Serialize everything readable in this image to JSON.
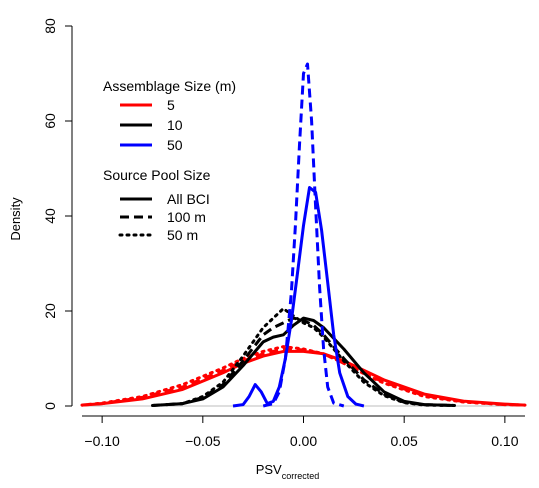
{
  "chart_data": {
    "type": "line",
    "title": "",
    "xlabel": "PSV",
    "xlabel_subscript": "corrected",
    "ylabel": "Density",
    "xlim": [
      -0.11,
      0.11
    ],
    "ylim": [
      0,
      80
    ],
    "xticks": [
      -0.1,
      -0.05,
      0.0,
      0.05,
      0.1
    ],
    "xtick_labels": [
      "−0.10",
      "−0.05",
      "0.00",
      "0.05",
      "0.10"
    ],
    "yticks": [
      0,
      20,
      40,
      60,
      80
    ],
    "ytick_labels": [
      "0",
      "20",
      "40",
      "60",
      "80"
    ],
    "legend_size": {
      "title": "Assemblage Size (m)",
      "entries": [
        {
          "label": "5",
          "color": "#ff0000"
        },
        {
          "label": "10",
          "color": "#000000"
        },
        {
          "label": "50",
          "color": "#0000ff"
        }
      ]
    },
    "legend_pool": {
      "title": "Source Pool Size",
      "entries": [
        {
          "label": "All BCI",
          "linestyle": "solid"
        },
        {
          "label": "100 m",
          "linestyle": "dashed"
        },
        {
          "label": "50 m",
          "linestyle": "dotted"
        }
      ]
    },
    "legend_placement": "top-left",
    "series": [
      {
        "size": "5",
        "pool": "All BCI",
        "color": "#ff0000",
        "linestyle": "solid",
        "x": [
          -0.11,
          -0.1,
          -0.08,
          -0.06,
          -0.04,
          -0.03,
          -0.02,
          -0.01,
          0.0,
          0.01,
          0.02,
          0.03,
          0.04,
          0.06,
          0.08,
          0.1,
          0.11
        ],
        "y": [
          0.2,
          0.5,
          1.5,
          3.5,
          7.0,
          9.0,
          10.5,
          11.5,
          11.5,
          11.0,
          9.5,
          7.5,
          5.5,
          2.5,
          1.0,
          0.4,
          0.2
        ]
      },
      {
        "size": "5",
        "pool": "100 m",
        "color": "#ff0000",
        "linestyle": "dashed",
        "x": [
          -0.11,
          -0.1,
          -0.08,
          -0.06,
          -0.04,
          -0.03,
          -0.02,
          -0.01,
          0.0,
          0.01,
          0.02,
          0.03,
          0.04,
          0.06,
          0.08,
          0.1,
          0.11
        ],
        "y": [
          0.2,
          0.5,
          1.8,
          4.0,
          7.5,
          9.5,
          11.0,
          12.0,
          11.8,
          11.0,
          9.0,
          7.0,
          5.0,
          2.2,
          0.9,
          0.3,
          0.2
        ]
      },
      {
        "size": "5",
        "pool": "50 m",
        "color": "#ff0000",
        "linestyle": "dotted",
        "x": [
          -0.11,
          -0.1,
          -0.08,
          -0.06,
          -0.04,
          -0.03,
          -0.02,
          -0.01,
          0.0,
          0.01,
          0.02,
          0.03,
          0.04,
          0.06,
          0.08,
          0.1,
          0.11
        ],
        "y": [
          0.2,
          0.6,
          2.0,
          4.5,
          8.0,
          10.0,
          11.5,
          12.5,
          12.0,
          11.0,
          9.0,
          6.8,
          4.8,
          2.0,
          0.8,
          0.3,
          0.2
        ]
      },
      {
        "size": "10",
        "pool": "All BCI",
        "color": "#000000",
        "linestyle": "solid",
        "x": [
          -0.075,
          -0.06,
          -0.05,
          -0.04,
          -0.03,
          -0.02,
          -0.015,
          -0.01,
          -0.005,
          0.0,
          0.005,
          0.01,
          0.02,
          0.03,
          0.04,
          0.05,
          0.06,
          0.075
        ],
        "y": [
          0.1,
          0.5,
          1.5,
          4.0,
          8.5,
          13.5,
          14.5,
          15.0,
          17.0,
          18.5,
          18.0,
          16.5,
          12.0,
          7.0,
          3.0,
          1.0,
          0.3,
          0.1
        ]
      },
      {
        "size": "10",
        "pool": "100 m",
        "color": "#000000",
        "linestyle": "dashed",
        "x": [
          -0.075,
          -0.06,
          -0.05,
          -0.04,
          -0.03,
          -0.02,
          -0.015,
          -0.01,
          -0.005,
          0.0,
          0.005,
          0.01,
          0.02,
          0.03,
          0.04,
          0.05,
          0.06,
          0.075
        ],
        "y": [
          0.1,
          0.5,
          1.8,
          4.5,
          9.5,
          15.0,
          16.5,
          17.5,
          18.5,
          18.0,
          17.0,
          15.0,
          10.0,
          5.5,
          2.5,
          0.8,
          0.3,
          0.1
        ]
      },
      {
        "size": "10",
        "pool": "50 m",
        "color": "#000000",
        "linestyle": "dotted",
        "x": [
          -0.075,
          -0.06,
          -0.05,
          -0.04,
          -0.03,
          -0.02,
          -0.015,
          -0.01,
          -0.005,
          0.0,
          0.005,
          0.01,
          0.02,
          0.03,
          0.04,
          0.05,
          0.06,
          0.075
        ],
        "y": [
          0.1,
          0.5,
          2.0,
          5.0,
          10.5,
          16.5,
          18.5,
          20.5,
          19.0,
          17.5,
          16.5,
          14.5,
          9.5,
          5.0,
          2.2,
          0.7,
          0.2,
          0.1
        ]
      },
      {
        "size": "50",
        "pool": "All BCI",
        "color": "#0000ff",
        "linestyle": "solid",
        "x": [
          -0.035,
          -0.03,
          -0.027,
          -0.024,
          -0.021,
          -0.018,
          -0.015,
          -0.012,
          -0.009,
          -0.006,
          -0.003,
          0.0,
          0.003,
          0.006,
          0.009,
          0.012,
          0.015,
          0.018,
          0.022,
          0.026,
          0.03
        ],
        "y": [
          0.0,
          0.3,
          2.0,
          4.5,
          3.0,
          0.5,
          1.0,
          4.0,
          10.0,
          18.0,
          28.0,
          38.0,
          46.0,
          45.0,
          37.0,
          26.0,
          15.0,
          7.0,
          2.0,
          0.4,
          0.0
        ]
      },
      {
        "size": "50",
        "pool": "100 m",
        "color": "#0000ff",
        "linestyle": "dashed",
        "x": [
          -0.02,
          -0.015,
          -0.012,
          -0.009,
          -0.006,
          -0.004,
          -0.002,
          0.0,
          0.002,
          0.004,
          0.006,
          0.008,
          0.01,
          0.012,
          0.015,
          0.02
        ],
        "y": [
          0.0,
          0.5,
          3.0,
          10.0,
          24.0,
          38.0,
          55.0,
          70.0,
          72.0,
          60.0,
          42.0,
          25.0,
          12.0,
          4.0,
          0.6,
          0.0
        ]
      }
    ]
  }
}
